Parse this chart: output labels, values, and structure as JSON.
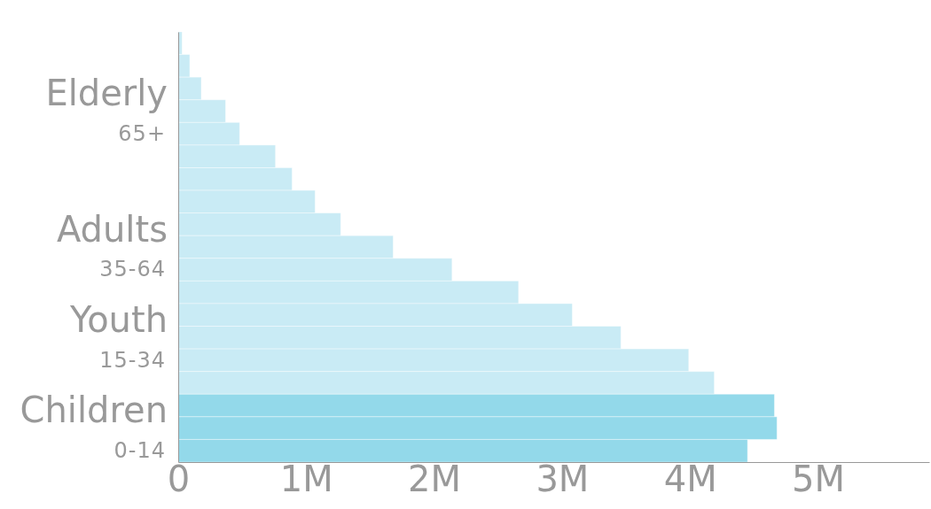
{
  "chart_data": {
    "type": "bar",
    "orientation": "horizontal",
    "categories": [
      null,
      null,
      null,
      null,
      "65+",
      null,
      null,
      null,
      null,
      null,
      "35-64",
      null,
      null,
      null,
      "15-34",
      null,
      null,
      null,
      "0-14"
    ],
    "values": [
      30000,
      90000,
      180000,
      370000,
      480000,
      760000,
      890000,
      1070000,
      1270000,
      1680000,
      2140000,
      2660000,
      3080000,
      3460000,
      3990000,
      4190000,
      4660000,
      4680000,
      4450000
    ],
    "colors": [
      "#c9ebf5",
      "#c9ebf5",
      "#c9ebf5",
      "#c9ebf5",
      "#c9ebf5",
      "#c9ebf5",
      "#c9ebf5",
      "#c9ebf5",
      "#c9ebf5",
      "#c9ebf5",
      "#c9ebf5",
      "#c9ebf5",
      "#c9ebf5",
      "#c9ebf5",
      "#c9ebf5",
      "#c9ebf5",
      "#93d9ea",
      "#93d9ea",
      "#93d9ea"
    ],
    "xlim": [
      0,
      5870000
    ],
    "xticks": [
      {
        "value": 0,
        "label": "0"
      },
      {
        "value": 1000000,
        "label": "1M"
      },
      {
        "value": 2000000,
        "label": "2M"
      },
      {
        "value": 3000000,
        "label": "3M"
      },
      {
        "value": 4000000,
        "label": "4M"
      },
      {
        "value": 5000000,
        "label": "5M"
      }
    ],
    "annotations": [
      "Elderly",
      "Adults",
      "Youth",
      "Children"
    ]
  }
}
